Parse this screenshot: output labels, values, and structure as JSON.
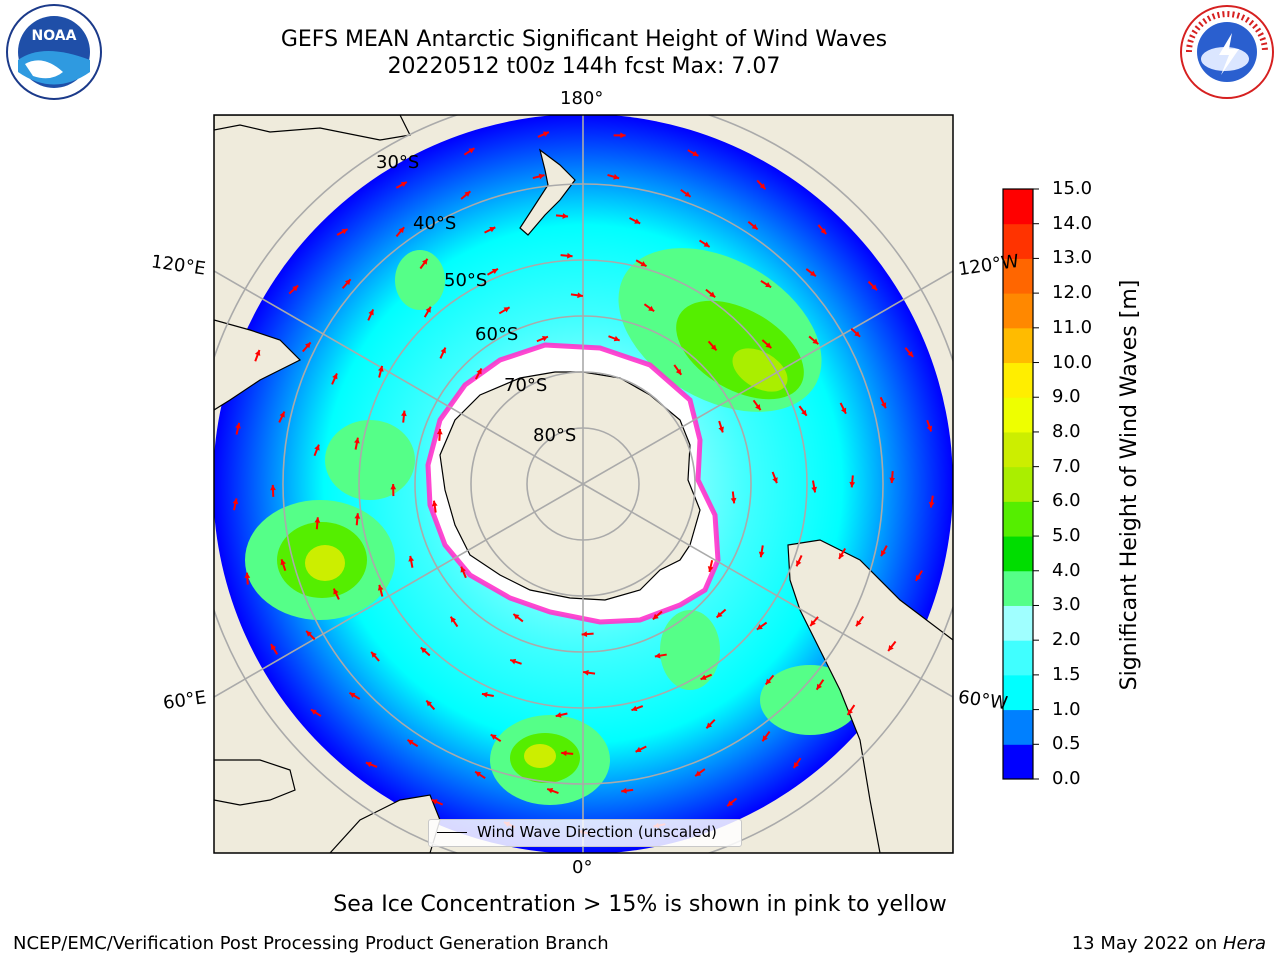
{
  "title": {
    "line1": "GEFS MEAN Antarctic Significant Height of Wind Waves",
    "line2": "20220512 t00z 144h fcst   Max: 7.07"
  },
  "logos": {
    "left": "NOAA",
    "right": "NATIONAL WEATHER SERVICE"
  },
  "map": {
    "projection": "south-polar-stereographic",
    "longitude_labels": [
      "180°",
      "120°E",
      "120°W",
      "60°E",
      "60°W",
      "0°"
    ],
    "latitude_labels": [
      "30°S",
      "40°S",
      "50°S",
      "60°S",
      "70°S",
      "80°S"
    ],
    "legend": "Wind Wave Direction (unscaled)",
    "colors": {
      "land": "#efebdc",
      "ocean_low": "#0000ff",
      "ocean_mid": "#00ffff",
      "arrow": "#ff0000",
      "ice_edge": "#ff33cc"
    }
  },
  "colorbar": {
    "label": "Significant Height of Wind Waves [m]",
    "ticks": [
      "0.0",
      "0.5",
      "1.0",
      "1.5",
      "2.0",
      "3.0",
      "4.0",
      "5.0",
      "6.0",
      "7.0",
      "8.0",
      "9.0",
      "10.0",
      "11.0",
      "12.0",
      "13.0",
      "14.0",
      "15.0"
    ],
    "colors": [
      "#0000ff",
      "#0080ff",
      "#00ffff",
      "#40ffff",
      "#a0ffff",
      "#55ff88",
      "#00dd00",
      "#55ee00",
      "#aaee00",
      "#ccee00",
      "#eeff00",
      "#ffee00",
      "#ffbb00",
      "#ff8800",
      "#ff6600",
      "#ff3300",
      "#ff0000"
    ]
  },
  "footer": {
    "note": "Sea Ice Concentration > 15% is shown in pink to yellow",
    "credit": "NCEP/EMC/Verification Post Processing Product Generation Branch",
    "date_prefix": "13 May 2022 on ",
    "date_host": "Hera"
  }
}
